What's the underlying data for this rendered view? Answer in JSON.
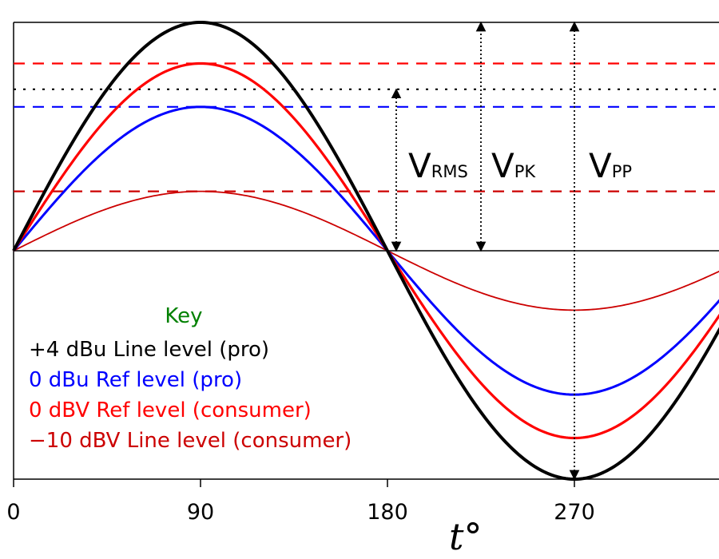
{
  "chart_data": {
    "type": "line",
    "x_unit": "degrees",
    "x_domain": [
      0,
      380
    ],
    "xlabel": "t°",
    "xticks": [
      {
        "value": 0,
        "label": "0"
      },
      {
        "value": 90,
        "label": "90"
      },
      {
        "value": 180,
        "label": "180"
      },
      {
        "value": 270,
        "label": "270"
      }
    ],
    "y_domain": [
      -1.0,
      1.0
    ],
    "grid": false,
    "series": [
      {
        "name": "+4 dBu Line level (pro)",
        "color": "#000000",
        "amplitude": 1.0,
        "rms_level": 0.707
      },
      {
        "name": "0 dBu Ref level (pro)",
        "color": "#0000ff",
        "amplitude": 0.63,
        "rms_level": 0.63
      },
      {
        "name": "0 dBV Ref level (consumer)",
        "color": "#ff0000",
        "amplitude": 0.82,
        "rms_level": 0.82
      },
      {
        "name": "−10 dBV Line level (consumer)",
        "color": "#cc0000",
        "amplitude": 0.26,
        "rms_level": 0.26
      }
    ],
    "annotations": [
      {
        "id": "vrms",
        "main": "V",
        "sub": "RMS",
        "x": 180,
        "from": 0,
        "to": 0.707
      },
      {
        "id": "vpk",
        "main": "V",
        "sub": "PK",
        "x": 225,
        "from": 0,
        "to": 1.0
      },
      {
        "id": "vpp",
        "main": "V",
        "sub": "PP",
        "x": 270,
        "from": -1.0,
        "to": 1.0
      }
    ],
    "legend": {
      "title": "Key",
      "title_color": "#008000",
      "position": "lower-left"
    }
  }
}
